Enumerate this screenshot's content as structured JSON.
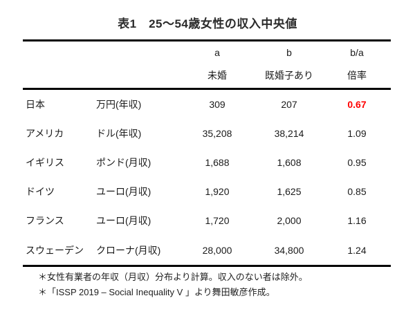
{
  "title": "表1　25～54歳女性の収入中央値",
  "colors": {
    "highlight_red": "#ff0000",
    "text": "#1a1a1a",
    "rule": "#000000",
    "background": "#ffffff"
  },
  "chart_data": {
    "type": "table",
    "title": "表1　25～54歳女性の収入中央値",
    "column_headers_top": [
      "a",
      "b",
      "b/a"
    ],
    "column_headers_bottom": [
      "未婚",
      "既婚子あり",
      "倍率"
    ],
    "rows": [
      {
        "country": "日本",
        "unit": "万円(年収)",
        "a": "309",
        "b": "207",
        "ratio": "0.67",
        "ratio_highlighted": true
      },
      {
        "country": "アメリカ",
        "unit": "ドル(年収)",
        "a": "35,208",
        "b": "38,214",
        "ratio": "1.09",
        "ratio_highlighted": false
      },
      {
        "country": "イギリス",
        "unit": "ポンド(月収)",
        "a": "1,688",
        "b": "1,608",
        "ratio": "0.95",
        "ratio_highlighted": false
      },
      {
        "country": "ドイツ",
        "unit": "ユーロ(月収)",
        "a": "1,920",
        "b": "1,625",
        "ratio": "0.85",
        "ratio_highlighted": false
      },
      {
        "country": "フランス",
        "unit": "ユーロ(月収)",
        "a": "1,720",
        "b": "2,000",
        "ratio": "1.16",
        "ratio_highlighted": false
      },
      {
        "country": "スウェーデン",
        "unit": "クローナ(月収)",
        "a": "28,000",
        "b": "34,800",
        "ratio": "1.24",
        "ratio_highlighted": false
      }
    ],
    "footnotes": [
      "＊女性有業者の年収（月収）分布より計算。収入のない者は除外。",
      "＊「ISSP 2019 – Social Inequality V 」より舞田敏彦作成。"
    ]
  }
}
